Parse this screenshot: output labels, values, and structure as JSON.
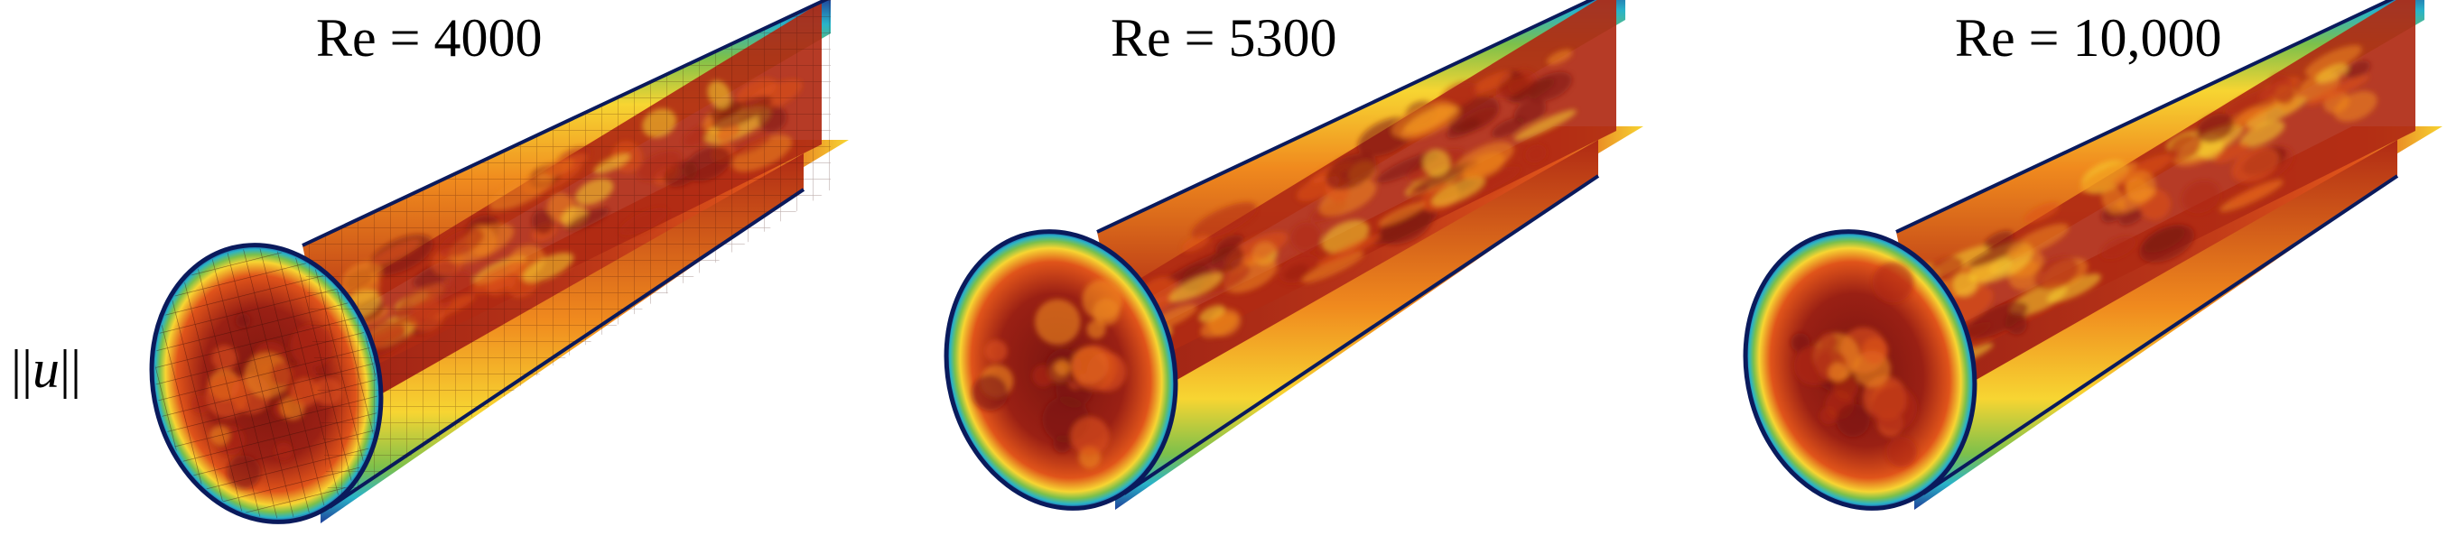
{
  "panels": [
    {
      "title": "Re = 4000",
      "mesh": true
    },
    {
      "title": "Re = 5300",
      "mesh": false
    },
    {
      "title": "Re = 10,000",
      "mesh": false
    }
  ],
  "quantity_label": {
    "bars_left": "||",
    "symbol": "u",
    "bars_right": "||"
  },
  "colors": {
    "deep_red": "#7a1510",
    "red": "#b02a14",
    "orange": "#e0541a",
    "bright_orange": "#f08a1e",
    "yellow": "#f7d532",
    "green": "#7cc04b",
    "cyan": "#29b3c8",
    "blue": "#1f3f9a",
    "navy": "#0a1a5c"
  }
}
